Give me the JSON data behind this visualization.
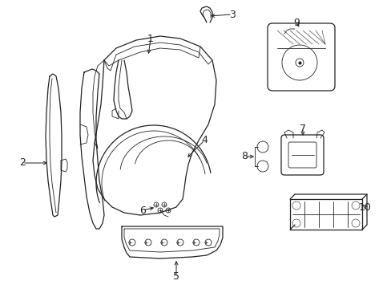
{
  "background_color": "#ffffff",
  "line_color": "#222222",
  "figsize": [
    4.89,
    3.6
  ],
  "dpi": 100
}
